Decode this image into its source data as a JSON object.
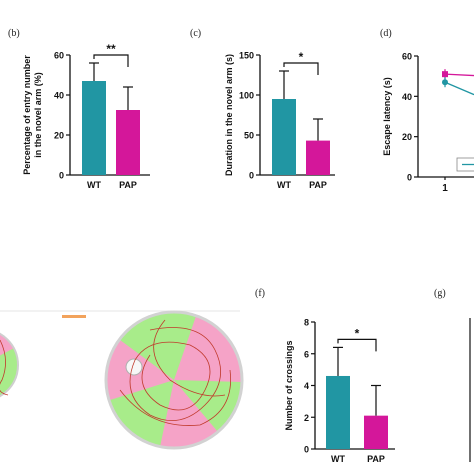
{
  "chart_data": [
    {
      "panel": "(b)",
      "type": "bar",
      "categories": [
        "WT",
        "PAP"
      ],
      "values": [
        47,
        32.5
      ],
      "errors": [
        9,
        11.5
      ],
      "ylabel": "Percentage of entry number in the novel arm (%)",
      "ylabel_lines": [
        "Percentage of entry number",
        "in the novel arm (%)"
      ],
      "yticks": [
        "0",
        "20",
        "40",
        "60"
      ],
      "ylim": [
        0,
        60
      ],
      "significance": "**",
      "colors": [
        "#2196a3",
        "#d4179a"
      ]
    },
    {
      "panel": "(c)",
      "type": "bar",
      "categories": [
        "WT",
        "PAP"
      ],
      "values": [
        95,
        43
      ],
      "errors": [
        35,
        27
      ],
      "ylabel": "Duration in the novel arm (s)",
      "yticks": [
        "0",
        "50",
        "100",
        "150"
      ],
      "ylim": [
        0,
        150
      ],
      "significance": "*",
      "colors": [
        "#2196a3",
        "#d4179a"
      ]
    },
    {
      "panel": "(d)",
      "type": "line",
      "x": [
        1
      ],
      "series": [
        {
          "values": [
            51
          ],
          "color": "#d4179a"
        },
        {
          "values": [
            47
          ],
          "color": "#2196a3"
        }
      ],
      "ylabel": "Escape latency (s)",
      "yticks": [
        "0",
        "20",
        "40",
        "60"
      ],
      "ylim": [
        0,
        60
      ],
      "xticks": [
        "1"
      ]
    },
    {
      "panel": "(f)",
      "type": "bar",
      "categories": [
        "WT",
        "PAP"
      ],
      "values": [
        4.6,
        2.1
      ],
      "errors": [
        1.8,
        1.9
      ],
      "ylabel": "Number of crossings",
      "yticks": [
        "0",
        "2",
        "4",
        "6",
        "8"
      ],
      "ylim": [
        0,
        8
      ],
      "significance": "*",
      "colors": [
        "#2196a3",
        "#d4179a"
      ]
    }
  ],
  "panels": {
    "g": "(g)"
  },
  "maze": {
    "zone_a_color": "#f5a3c7",
    "zone_b_color": "#a8ec8a"
  }
}
